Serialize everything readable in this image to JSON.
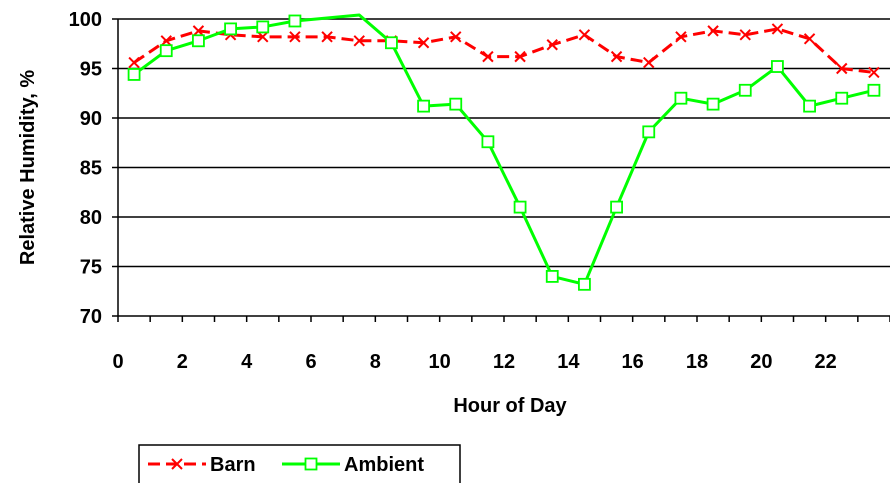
{
  "chart_data": {
    "type": "line",
    "title": "",
    "xlabel": "Hour of Day",
    "ylabel": "Relative Humidity, %",
    "xlim": [
      0,
      24
    ],
    "ylim": [
      70,
      100
    ],
    "x_ticks": [
      0,
      2,
      4,
      6,
      8,
      10,
      12,
      14,
      16,
      18,
      20,
      22
    ],
    "y_ticks": [
      70,
      75,
      80,
      85,
      90,
      95,
      100
    ],
    "grid": "horizontal",
    "legend_position": "bottom",
    "series": [
      {
        "name": "Barn",
        "color": "#ff0000",
        "marker": "x",
        "line_style": "dashed",
        "x": [
          0.5,
          1.5,
          2.5,
          3.5,
          4.5,
          5.5,
          6.5,
          7.5,
          8.5,
          9.5,
          10.5,
          11.5,
          12.5,
          13.5,
          14.5,
          15.5,
          16.5,
          17.5,
          18.5,
          19.5,
          20.5,
          21.5,
          22.5,
          23.5
        ],
        "values": [
          95.6,
          97.8,
          98.8,
          98.4,
          98.2,
          98.2,
          98.2,
          97.8,
          97.8,
          97.6,
          98.2,
          96.2,
          96.2,
          97.4,
          98.4,
          96.2,
          95.6,
          98.2,
          98.8,
          98.4,
          99.0,
          98.0,
          95.0,
          94.6
        ]
      },
      {
        "name": "Ambient",
        "color": "#00ff00",
        "marker": "square",
        "line_style": "solid",
        "x": [
          0.5,
          1.5,
          2.5,
          3.5,
          4.5,
          5.5,
          7.5,
          8.5,
          9.5,
          10.5,
          11.5,
          12.5,
          13.5,
          14.5,
          15.5,
          16.5,
          17.5,
          18.5,
          19.5,
          20.5,
          21.5,
          22.5,
          23.5
        ],
        "values": [
          94.4,
          96.8,
          97.8,
          99.0,
          99.2,
          99.8,
          100.4,
          97.6,
          91.2,
          91.4,
          87.6,
          81.0,
          74.0,
          73.2,
          81.0,
          88.6,
          92.0,
          91.4,
          92.8,
          95.2,
          91.2,
          92.0,
          92.8
        ],
        "marker_hidden_at_x": [
          7.5
        ]
      }
    ]
  }
}
